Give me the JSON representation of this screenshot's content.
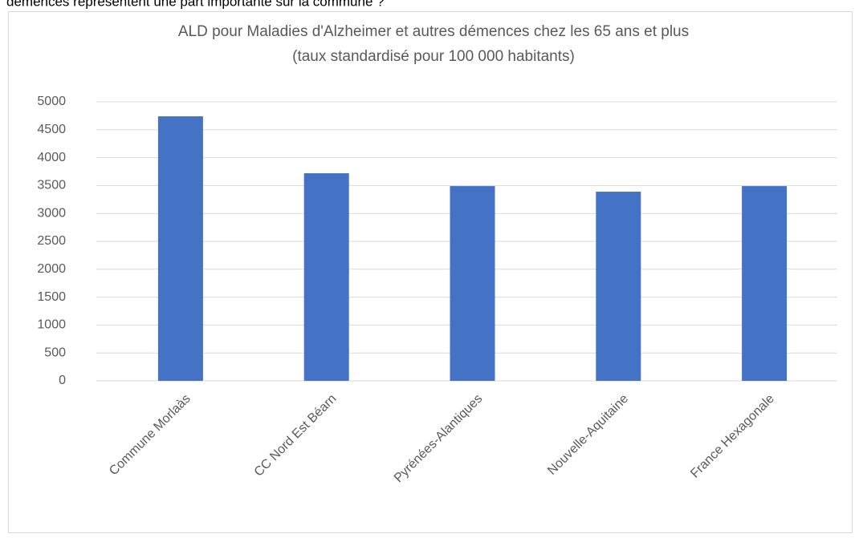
{
  "page_text": "démences représentent une part importante sur la commune ?",
  "chart_data": {
    "type": "bar",
    "title": "ALD pour Maladies d'Alzheimer et autres démences chez les 65 ans et plus",
    "subtitle": "(taux standardisé pour 100 000 habitants)",
    "categories": [
      "Commune Morlaàs",
      "CC Nord Est Béarn",
      "Pyrénées-Alantiques",
      "Nouvelle-Aquitaine",
      "France Hexagonale"
    ],
    "values": [
      4740,
      3720,
      3490,
      3390,
      3490
    ],
    "color": "#4472c4",
    "ylim": [
      0,
      5000
    ],
    "yticks": [
      0,
      500,
      1000,
      1500,
      2000,
      2500,
      3000,
      3500,
      4000,
      4500,
      5000
    ],
    "grid": true
  }
}
